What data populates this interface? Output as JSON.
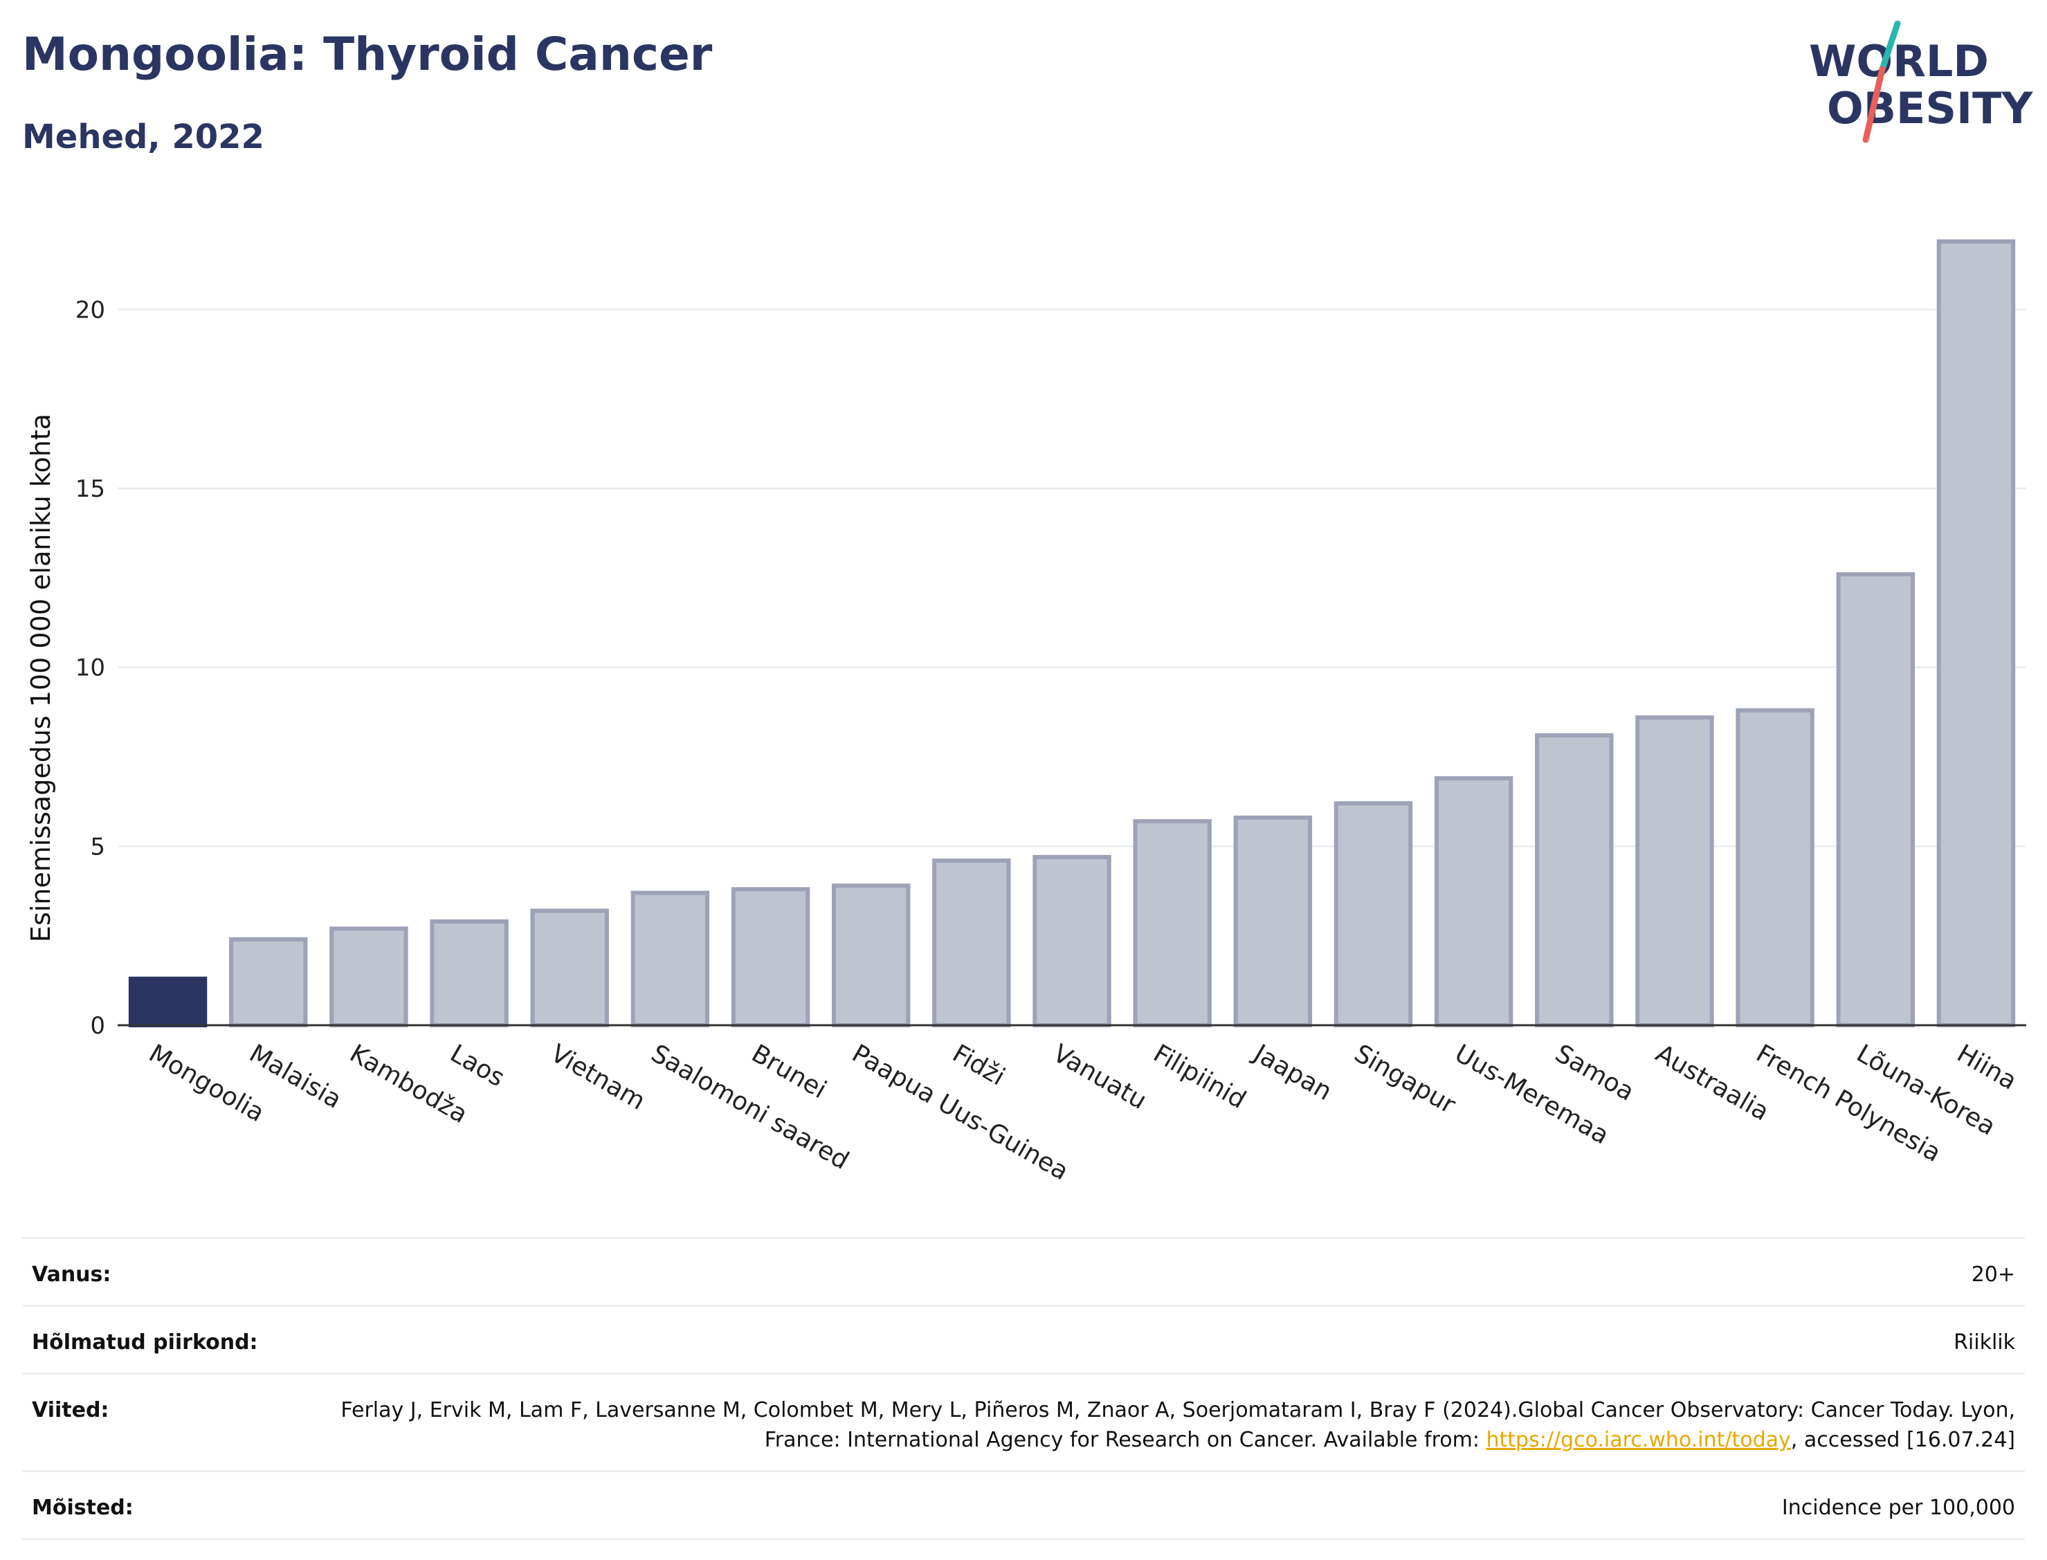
{
  "header": {
    "title": "Mongoolia: Thyroid Cancer",
    "subtitle": "Mehed, 2022"
  },
  "logo": {
    "line1": "WORLD",
    "line2": "OBESITY",
    "colors": {
      "text": "#2a3561",
      "slash_top": "#2bb5b0",
      "slash_bottom": "#e8605a"
    }
  },
  "chart_data": {
    "type": "bar",
    "ylabel": "Esinemissagedus 100 000 elaniku kohta",
    "ylim": [
      0,
      22.5
    ],
    "yticks": [
      0,
      5,
      10,
      15,
      20
    ],
    "grid": true,
    "highlight_index": 0,
    "colors": {
      "highlight": "#2a3561",
      "bar_fill": "#c0c3d0",
      "bar_stroke": "#9da2b8",
      "grid": "#eceef2"
    },
    "categories": [
      "Mongoolia",
      "Malaisia",
      "Kambodža",
      "Laos",
      "Vietnam",
      "Saalomoni saared",
      "Brunei",
      "Paapua Uus-Guinea",
      "Fidži",
      "Vanuatu",
      "Filipiinid",
      "Jaapan",
      "Singapur",
      "Uus-Meremaa",
      "Samoa",
      "Austraalia",
      "French Polynesia",
      "Lõuna-Korea",
      "Hiina"
    ],
    "values": [
      1.3,
      2.4,
      2.7,
      2.9,
      3.2,
      3.7,
      3.8,
      3.9,
      4.6,
      4.7,
      5.7,
      5.8,
      6.2,
      6.9,
      8.1,
      8.6,
      8.8,
      12.6,
      21.9
    ]
  },
  "info": {
    "age_label": "Vanus:",
    "age_value": "20+",
    "region_label": "Hõlmatud piirkond:",
    "region_value": "Riiklik",
    "refs_label": "Viited:",
    "refs_text_1": "Ferlay J, Ervik M, Lam F, Laversanne M, Colombet M, Mery L, Piñeros M, Znaor A, Soerjomataram I, Bray F (2024).Global Cancer Observatory: Cancer Today. Lyon, France: International Agency for Research on Cancer. Available from: ",
    "refs_link": "https://gco.iarc.who.int/today",
    "refs_text_2": ", accessed [16.07.24]",
    "definitions_label": "Mõisted:",
    "definitions_value": "Incidence per 100,000"
  }
}
